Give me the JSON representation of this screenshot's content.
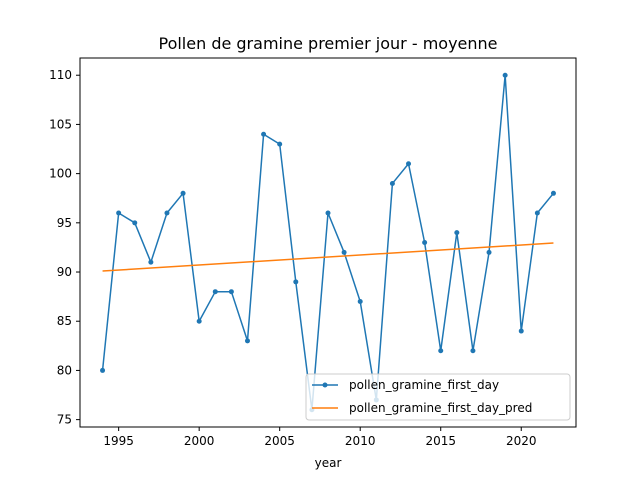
{
  "chart_data": {
    "type": "line",
    "title": "Pollen de gramine premier jour - moyenne",
    "xlabel": "year",
    "ylabel": "",
    "xlim": [
      1992.6,
      2023.4
    ],
    "ylim": [
      74.25,
      111.75
    ],
    "xticks": [
      1995,
      2000,
      2005,
      2010,
      2015,
      2020
    ],
    "yticks": [
      75,
      80,
      85,
      90,
      95,
      100,
      105,
      110
    ],
    "grid": false,
    "legend_position": "lower right",
    "series": [
      {
        "name": "pollen_gramine_first_day",
        "color": "#1f77b4",
        "marker": "dot",
        "x": [
          1994,
          1995,
          1996,
          1997,
          1998,
          1999,
          2000,
          2001,
          2002,
          2003,
          2004,
          2005,
          2006,
          2007,
          2008,
          2009,
          2010,
          2011,
          2012,
          2013,
          2014,
          2015,
          2016,
          2017,
          2018,
          2019,
          2020,
          2021,
          2022
        ],
        "y": [
          80,
          96,
          95,
          91,
          96,
          98,
          85,
          88,
          88,
          83,
          104,
          103,
          89,
          76,
          96,
          92,
          87,
          77,
          99,
          101,
          93,
          82,
          94,
          82,
          92,
          110,
          84,
          96,
          98
        ]
      },
      {
        "name": "pollen_gramine_first_day_pred",
        "color": "#ff7f0e",
        "marker": "none",
        "x": [
          1994,
          2022
        ],
        "y": [
          90.1,
          92.95
        ]
      }
    ]
  }
}
